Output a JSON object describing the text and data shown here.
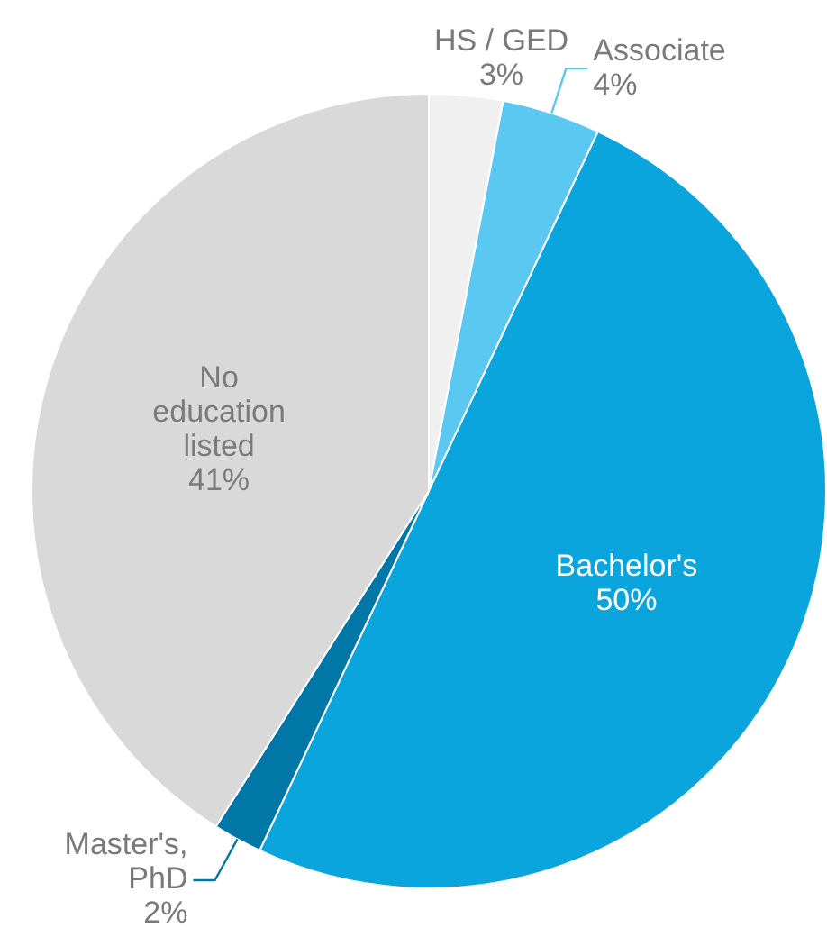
{
  "chart_data": {
    "type": "pie",
    "categories": [
      "HS / GED",
      "Associate",
      "Bachelor's",
      "Master's, PhD",
      "No education listed"
    ],
    "values": [
      3,
      4,
      50,
      2,
      41
    ],
    "value_labels": [
      "3%",
      "4%",
      "50%",
      "2%",
      "41%"
    ],
    "colors": [
      "#f0f0f0",
      "#5bc8f2",
      "#0aa5dd",
      "#0077a6",
      "#d9d9d9"
    ],
    "legend": false
  }
}
